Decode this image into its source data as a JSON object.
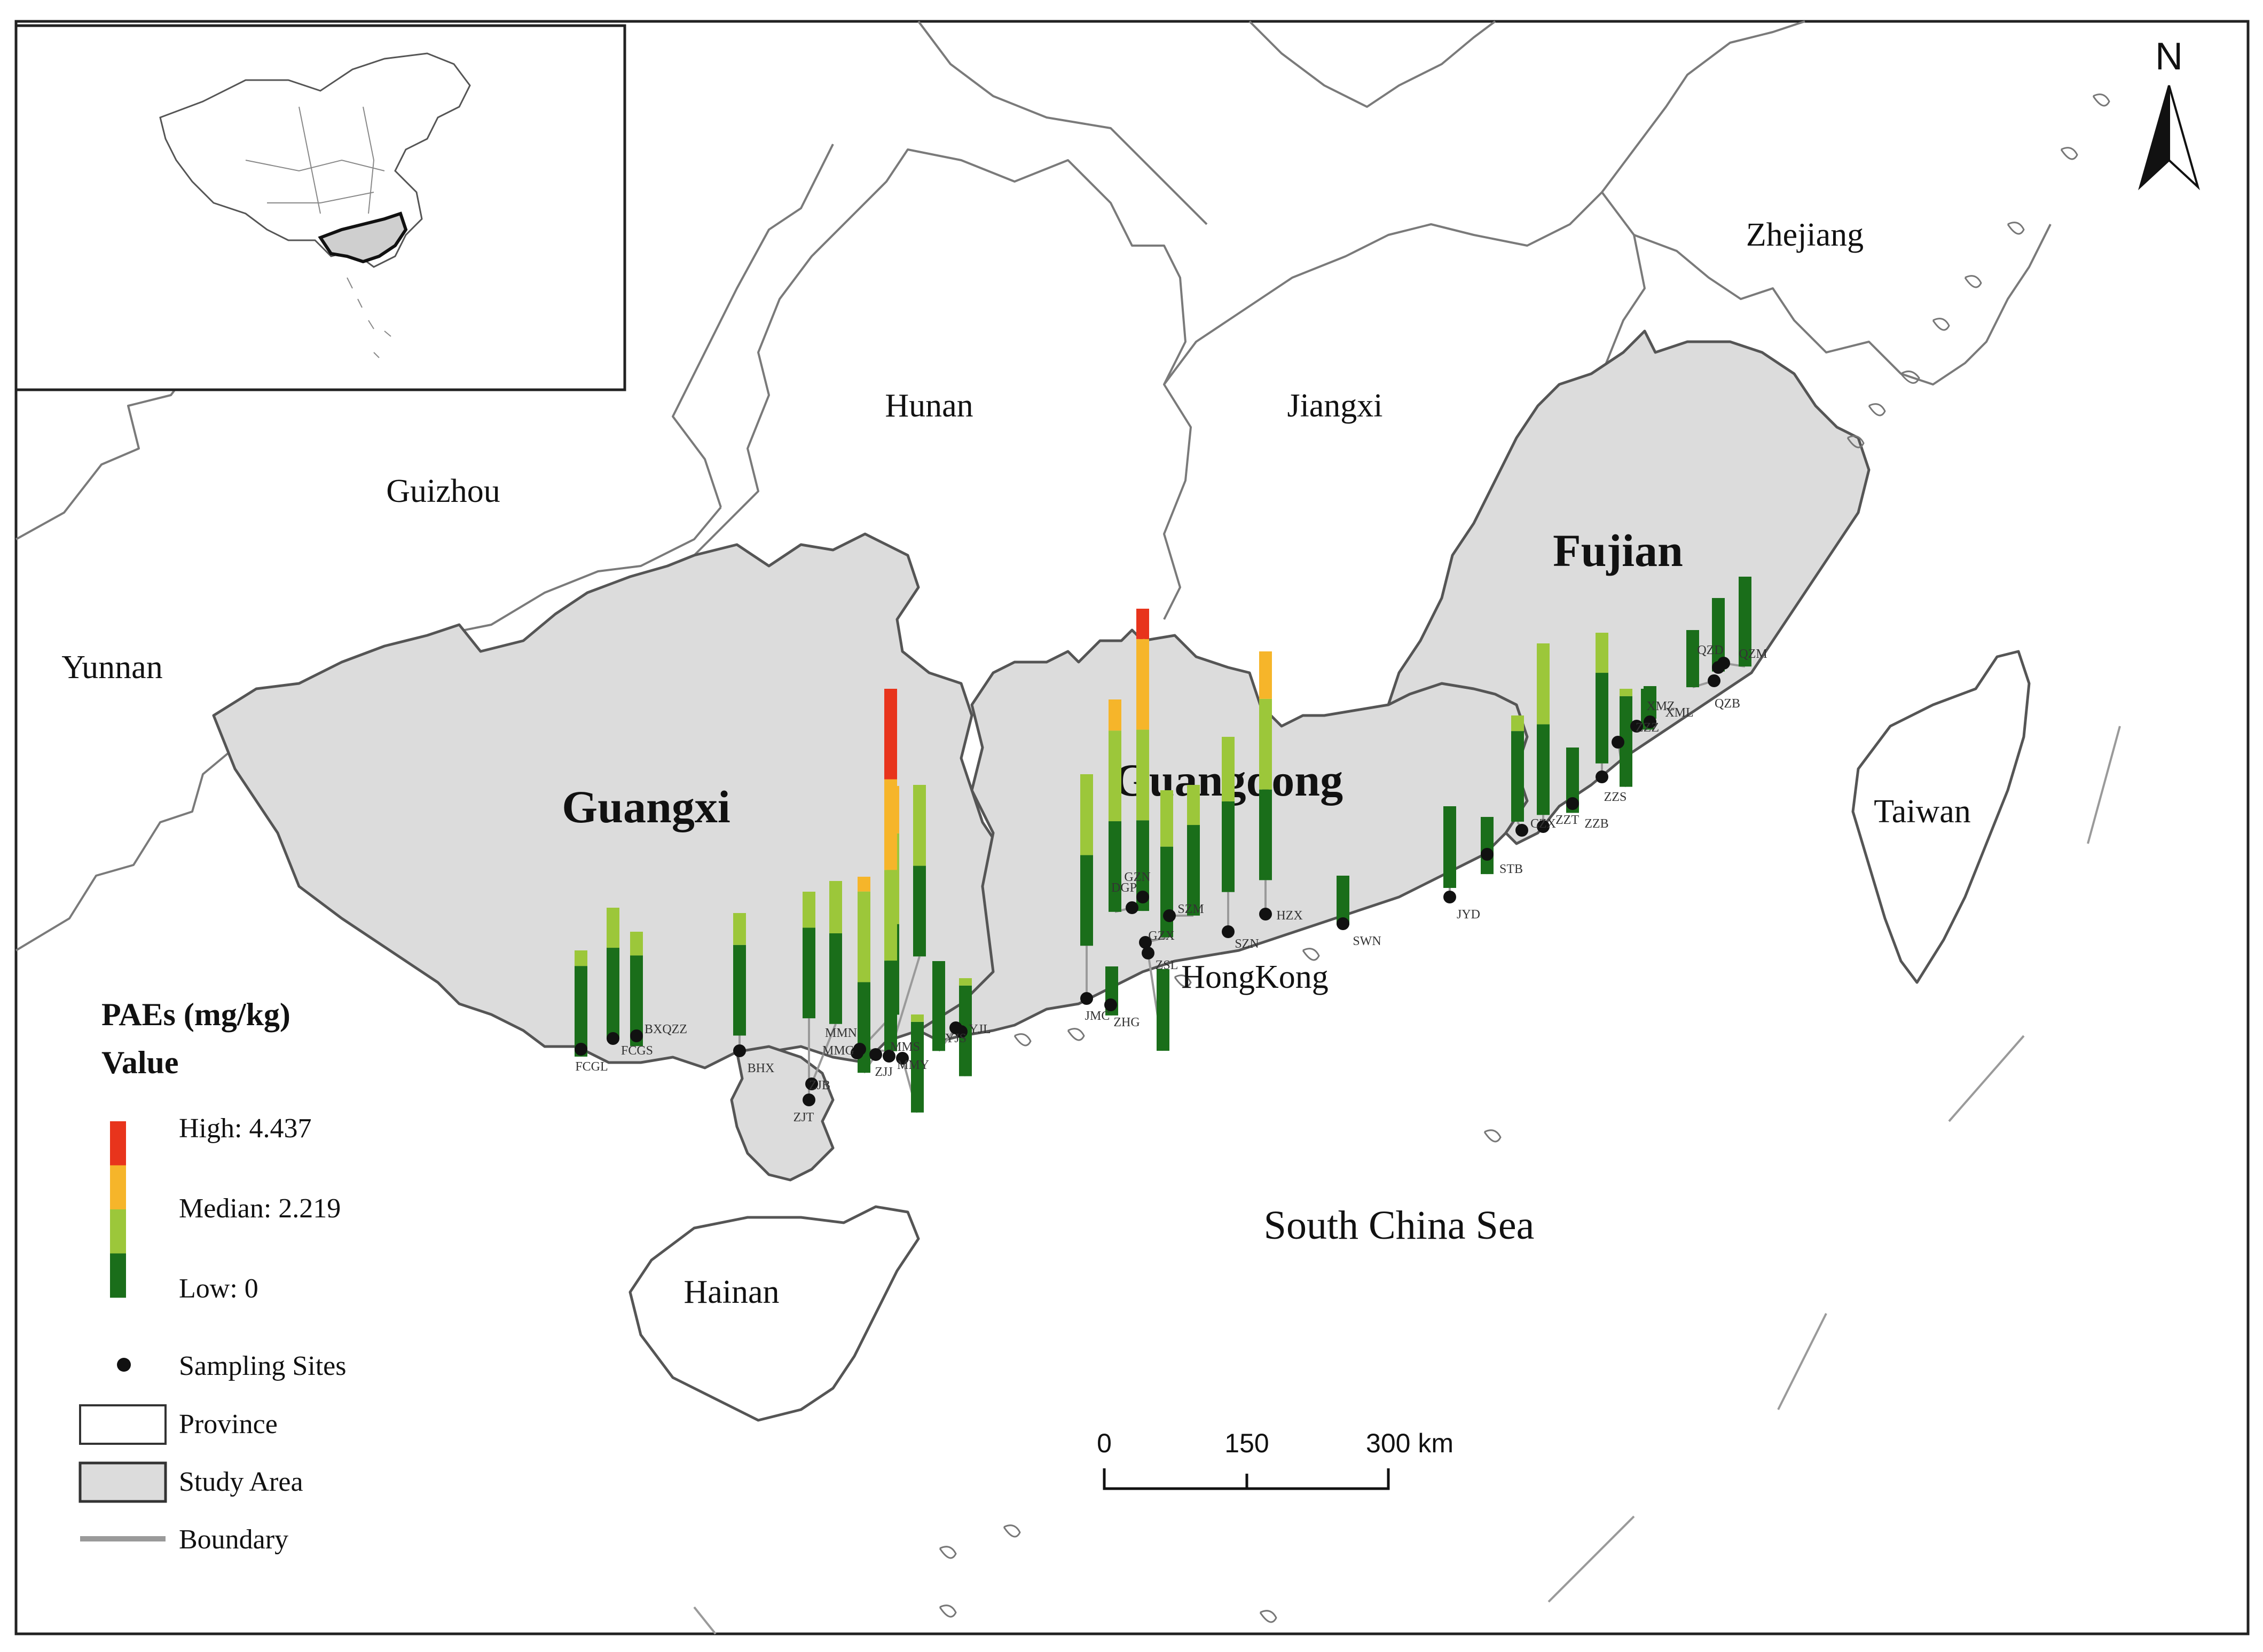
{
  "regions": {
    "study_provinces": [
      "Guangxi",
      "Guangdong",
      "Fujian"
    ],
    "other_provinces": [
      "Yunnan",
      "Guizhou",
      "Hunan",
      "Jiangxi",
      "Zhejiang",
      "Hainan",
      "Taiwan"
    ],
    "special": [
      "HongKong"
    ],
    "sea": "South China Sea"
  },
  "legend": {
    "title": "PAEs (mg/kg)",
    "subtitle": "Value",
    "high_label": "High: 4.437",
    "median_label": "Median: 2.219",
    "low_label": "Low: 0",
    "high_value": 4.437,
    "median_value": 2.219,
    "low_value": 0,
    "ramp_colors": [
      "#e8341c",
      "#f6b52a",
      "#9cc73a",
      "#1a6e1a"
    ],
    "items": {
      "sites": "Sampling Sites",
      "province": "Province",
      "study_area": "Study Area",
      "boundary": "Boundary"
    }
  },
  "scale_bar": {
    "labels": [
      "0",
      "150",
      "300 km"
    ]
  },
  "north_arrow": {
    "label": "N"
  },
  "colors": {
    "study_fill": "#dcdcdc",
    "high": "#e8341c",
    "upper_mid": "#f6b52a",
    "lower_mid": "#9cc73a",
    "low": "#1a6e1a"
  },
  "sites": [
    {
      "code": "FCGL",
      "value": 1.3
    },
    {
      "code": "FCGS",
      "value": 1.6
    },
    {
      "code": "BXQZZ",
      "value": 1.4
    },
    {
      "code": "BHX",
      "value": 1.5
    },
    {
      "code": "ZJT",
      "value": 1.55
    },
    {
      "code": "ZJB",
      "value": 1.75
    },
    {
      "code": "ZJJ",
      "value": 2.4
    },
    {
      "code": "MMN",
      "value": 2.8
    },
    {
      "code": "MMG",
      "value": 4.437
    },
    {
      "code": "MMS",
      "value": 2.1
    },
    {
      "code": "MMY",
      "value": 1.2
    },
    {
      "code": "YJL",
      "value": 1.1
    },
    {
      "code": "YJS",
      "value": 1.2
    },
    {
      "code": "JMC",
      "value": 2.1
    },
    {
      "code": "ZHG",
      "value": 0.6
    },
    {
      "code": "DGP",
      "value": 2.6
    },
    {
      "code": "GZN",
      "value": 3.7
    },
    {
      "code": "GZX",
      "value": 1.8
    },
    {
      "code": "ZSL",
      "value": 1.0
    },
    {
      "code": "SZM",
      "value": 1.6
    },
    {
      "code": "SZN",
      "value": 1.9
    },
    {
      "code": "HZX",
      "value": 2.8
    },
    {
      "code": "SWN",
      "value": 0.6
    },
    {
      "code": "JYD",
      "value": 1.0
    },
    {
      "code": "STB",
      "value": 0.7
    },
    {
      "code": "CZX",
      "value": 1.3
    },
    {
      "code": "ZZT",
      "value": 2.1
    },
    {
      "code": "ZZB",
      "value": 0.8
    },
    {
      "code": "ZZS",
      "value": 1.6
    },
    {
      "code": "ZZZ",
      "value": 1.2
    },
    {
      "code": "XMZ",
      "value": 0.5
    },
    {
      "code": "XML",
      "value": 0.4
    },
    {
      "code": "QZB",
      "value": 0.7
    },
    {
      "code": "QZD",
      "value": 0.9
    },
    {
      "code": "QZM",
      "value": 1.1
    }
  ]
}
